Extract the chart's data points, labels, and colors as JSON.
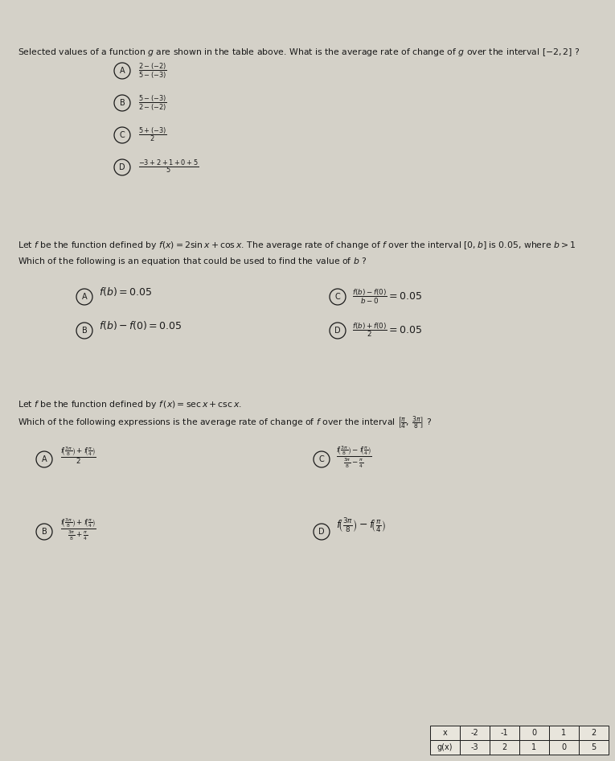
{
  "bg_color": "#d4d1c8",
  "text_color": "#1a1a1a",
  "table_headers": [
    "x",
    "-2",
    "-1",
    "0",
    "1",
    "2"
  ],
  "table_row2": [
    "g(x)",
    "-3",
    "2",
    "1",
    "0",
    "5"
  ],
  "q1_prompt": "Selected values of a function $g$ are shown in the table above. What is the average rate of change of $g$ over the interval $[-2, 2]$ ?",
  "q2_prompt1": "Let $f$ be the function defined by $f(x) = 2\\sin x + \\cos x$. The average rate of change of $f$ over the interval $[0, b]$ is 0.05, where $b > 1$",
  "q2_prompt2": "Which of the following is an equation that could be used to find the value of $b$ ?",
  "q3_prompt1": "Let $f$ be the function defined by $f\\,(x) = \\sec x + \\csc x$.",
  "q3_prompt2": "Which of the following expressions is the average rate of change of $f$ over the interval $\\left[\\frac{\\pi}{4},\\, \\frac{3\\pi}{8}\\right]$ ?"
}
